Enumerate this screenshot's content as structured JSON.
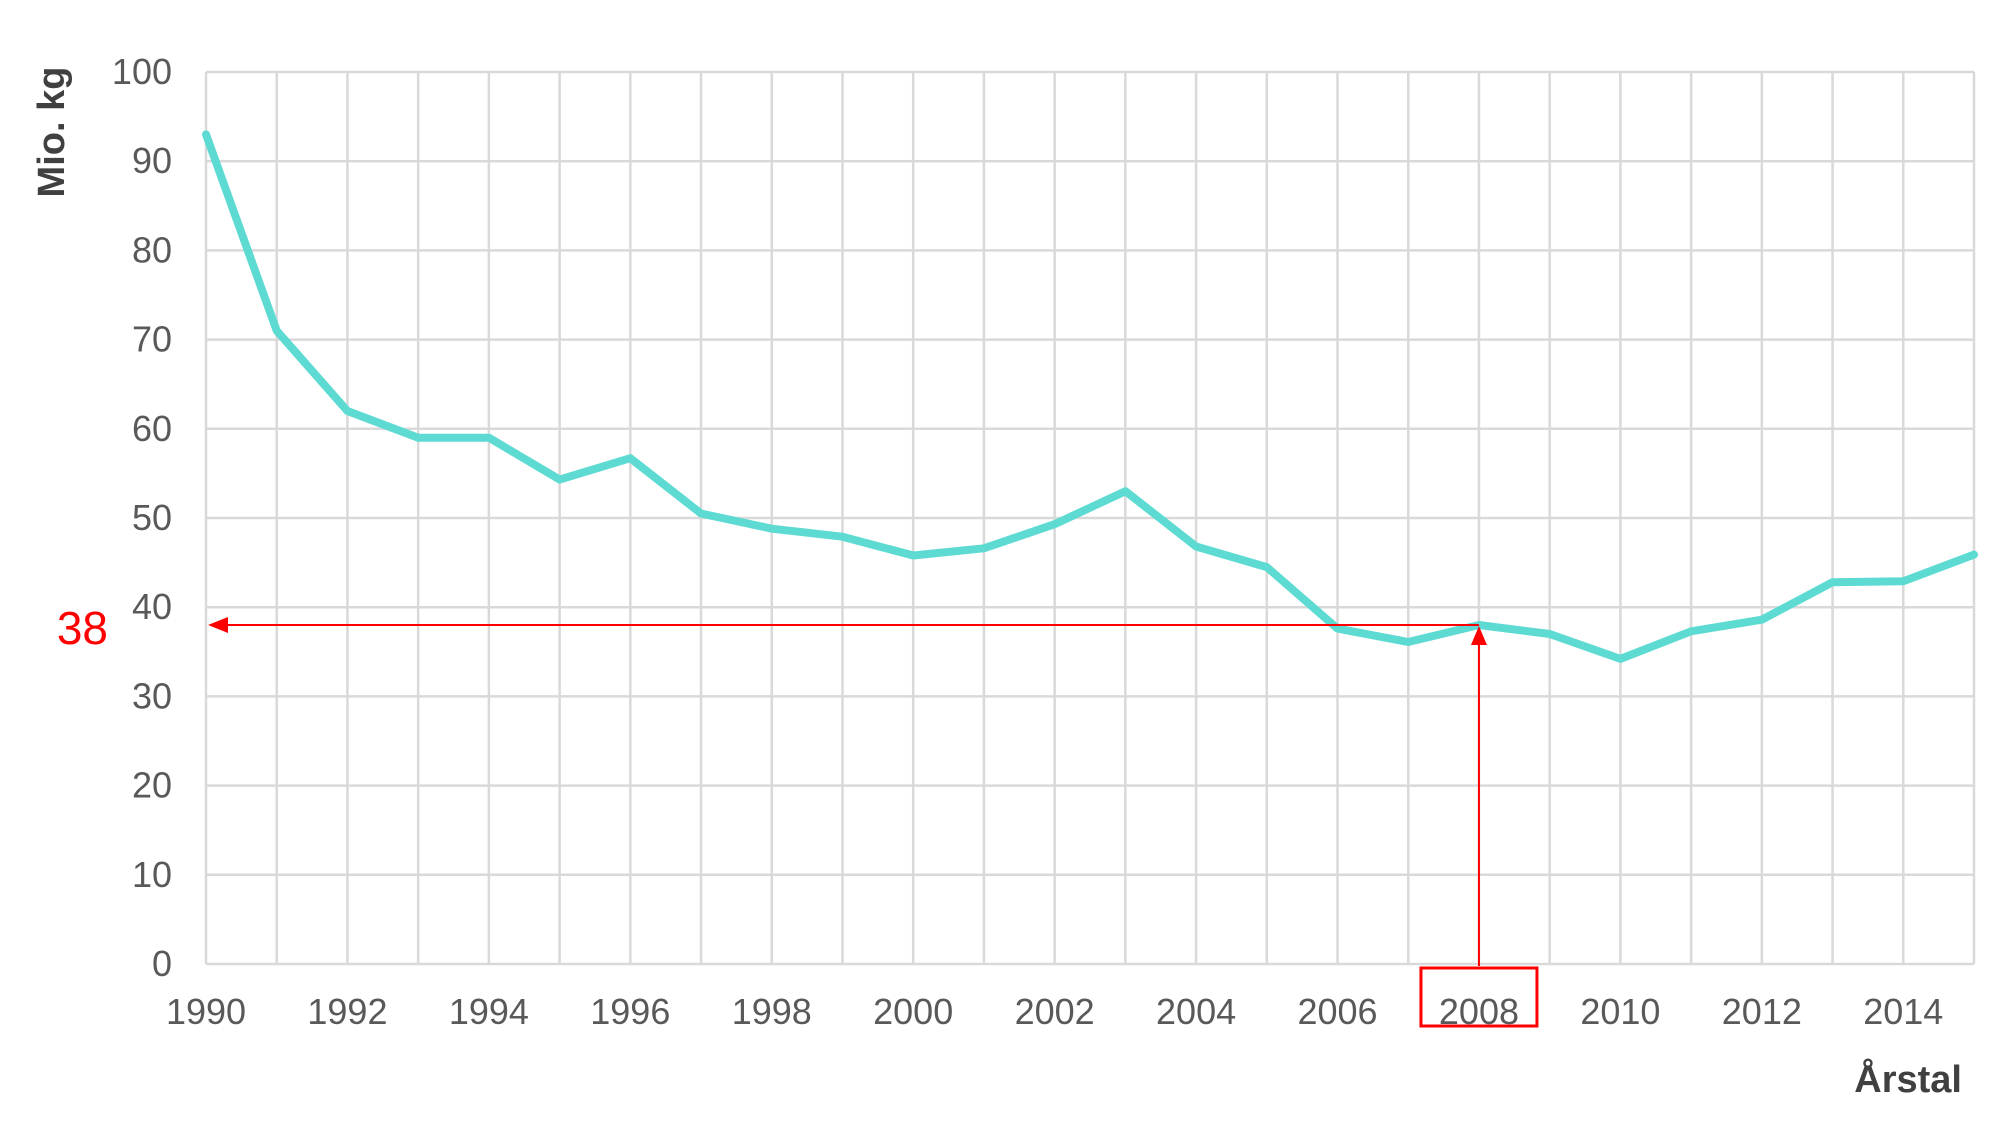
{
  "chart_data": {
    "type": "line",
    "title": "",
    "xlabel": "Årstal",
    "ylabel": "Mio. kg",
    "xlim": [
      1990,
      2015
    ],
    "ylim": [
      0,
      100
    ],
    "grid": true,
    "x_ticks": [
      1990,
      1992,
      1994,
      1996,
      1998,
      2000,
      2002,
      2004,
      2006,
      2008,
      2010,
      2012,
      2014
    ],
    "x_tick_labels": [
      "1990",
      "1992",
      "1994",
      "1996",
      "1998",
      "2000",
      "2002",
      "2004",
      "2006",
      "2008",
      "2010",
      "2012",
      "2014"
    ],
    "y_ticks": [
      0,
      10,
      20,
      30,
      40,
      50,
      60,
      70,
      80,
      90,
      100
    ],
    "y_tick_labels": [
      "0",
      "10",
      "20",
      "30",
      "40",
      "50",
      "60",
      "70",
      "80",
      "90",
      "100"
    ],
    "series": [
      {
        "color": "#5ddbd3",
        "x": [
          1990,
          1991,
          1992,
          1993,
          1994,
          1995,
          1996,
          1997,
          1998,
          1999,
          2000,
          2001,
          2002,
          2003,
          2004,
          2005,
          2006,
          2007,
          2008,
          2009,
          2010,
          2011,
          2012,
          2013,
          2014,
          2015
        ],
        "values": [
          93,
          71,
          62,
          59,
          59,
          54.3,
          56.7,
          50.5,
          48.8,
          47.9,
          45.8,
          46.6,
          49.3,
          53,
          46.8,
          44.5,
          37.6,
          36.1,
          38,
          37,
          34.2,
          37.3,
          38.6,
          42.8,
          42.9,
          45.9
        ]
      }
    ],
    "annotation": {
      "x": 2008,
      "y": 38,
      "label": "38",
      "color": "#ff0000"
    }
  }
}
